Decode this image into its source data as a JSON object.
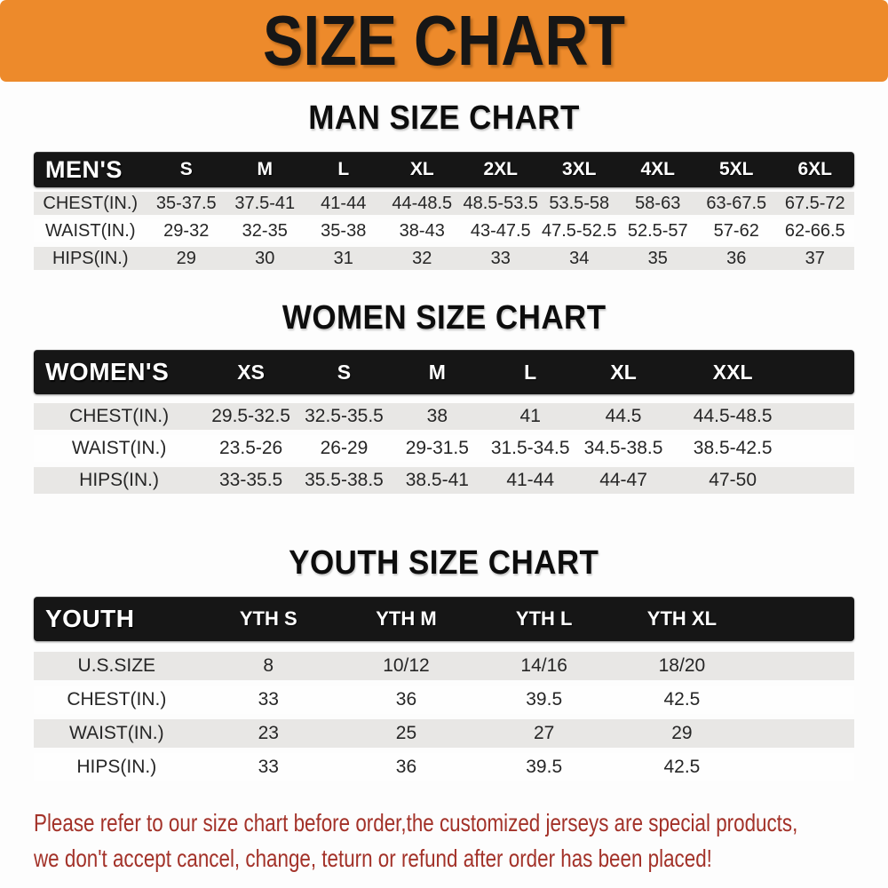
{
  "banner": {
    "title": "SIZE CHART",
    "bg_color": "#ED8A2B",
    "text_color": "#161616"
  },
  "tables": [
    {
      "id": "mens",
      "heading": "MAN SIZE CHART",
      "corner_label": "MEN'S",
      "columns": [
        "S",
        "M",
        "L",
        "XL",
        "2XL",
        "3XL",
        "4XL",
        "5XL",
        "6XL"
      ],
      "rows": [
        {
          "label": "CHEST(IN.)",
          "values": [
            "35-37.5",
            "37.5-41",
            "41-44",
            "44-48.5",
            "48.5-53.5",
            "53.5-58",
            "58-63",
            "63-67.5",
            "67.5-72"
          ]
        },
        {
          "label": "WAIST(IN.)",
          "values": [
            "29-32",
            "32-35",
            "35-38",
            "38-43",
            "43-47.5",
            "47.5-52.5",
            "52.5-57",
            "57-62",
            "62-66.5"
          ]
        },
        {
          "label": "HIPS(IN.)",
          "values": [
            "29",
            "30",
            "31",
            "32",
            "33",
            "34",
            "35",
            "36",
            "37"
          ]
        }
      ]
    },
    {
      "id": "women",
      "heading": "WOMEN SIZE CHART",
      "corner_label": "WOMEN'S",
      "columns": [
        "XS",
        "S",
        "M",
        "L",
        "XL",
        "XXL"
      ],
      "rows": [
        {
          "label": "CHEST(IN.)",
          "values": [
            "29.5-32.5",
            "32.5-35.5",
            "38",
            "41",
            "44.5",
            "44.5-48.5"
          ]
        },
        {
          "label": "WAIST(IN.)",
          "values": [
            "23.5-26",
            "26-29",
            "29-31.5",
            "31.5-34.5",
            "34.5-38.5",
            "38.5-42.5"
          ]
        },
        {
          "label": "HIPS(IN.)",
          "values": [
            "33-35.5",
            "35.5-38.5",
            "38.5-41",
            "41-44",
            "44-47",
            "47-50"
          ]
        }
      ]
    },
    {
      "id": "youth",
      "heading": "YOUTH SIZE CHART",
      "corner_label": "YOUTH",
      "columns": [
        "YTH S",
        "YTH M",
        "YTH L",
        "YTH XL"
      ],
      "rows": [
        {
          "label": "U.S.SIZE",
          "values": [
            "8",
            "10/12",
            "14/16",
            "18/20"
          ]
        },
        {
          "label": "CHEST(IN.)",
          "values": [
            "33",
            "36",
            "39.5",
            "42.5"
          ]
        },
        {
          "label": "WAIST(IN.)",
          "values": [
            "23",
            "25",
            "27",
            "29"
          ]
        },
        {
          "label": "HIPS(IN.)",
          "values": [
            "33",
            "36",
            "39.5",
            "42.5"
          ]
        }
      ]
    }
  ],
  "footer": {
    "line1": "Please refer to our size chart before order,the customized jerseys are special products,",
    "line2": "we don't accept cancel, change, teturn or refund after order has been placed!",
    "text_color": "#A33229"
  },
  "colors": {
    "table_header_bg": "#161616",
    "row_shaded": "#E8E7E5",
    "row_plain": "#FEFEFE"
  }
}
